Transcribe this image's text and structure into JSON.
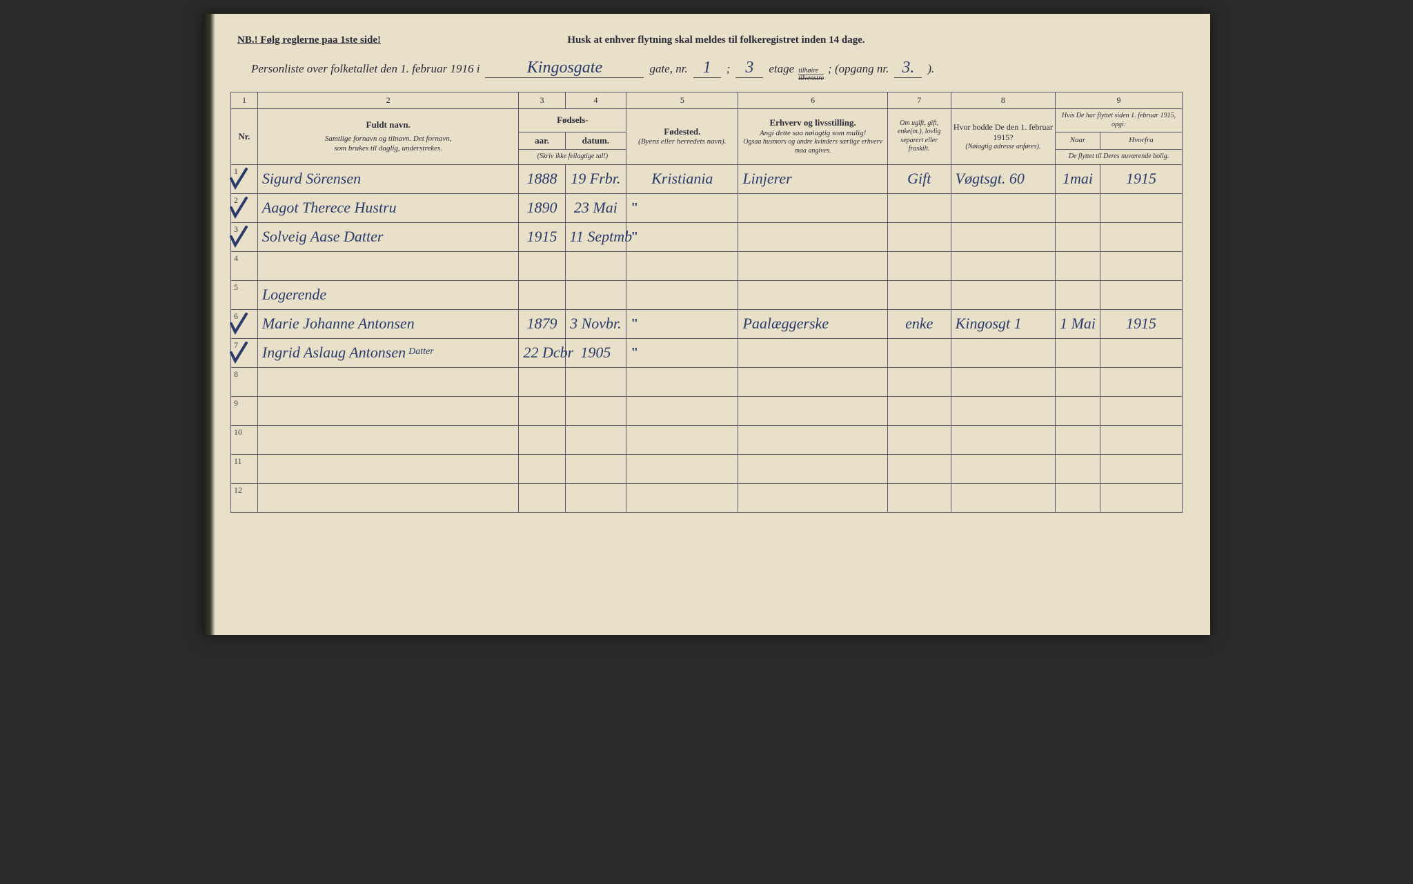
{
  "header": {
    "nb": "NB.! Følg reglerne paa 1ste side!",
    "husk": "Husk at enhver flytning skal meldes til folkeregistret inden 14 dage.",
    "personliste_prefix": "Personliste over folketallet den 1. februar 1916 i",
    "gate_fill": "Kingosgate",
    "gate_label": "gate, nr.",
    "nr_fill": "1",
    "semicolon": ";",
    "etage_fill": "3",
    "etage_label": "etage",
    "tilhoire_top": "tilhøire",
    "tilvenstre_bottom": "tilvenstre",
    "opgang_label": "; (opgang nr.",
    "opgang_fill": "3.",
    "close": ")."
  },
  "columns": {
    "nums": [
      "1",
      "2",
      "3",
      "4",
      "5",
      "6",
      "7",
      "8",
      "9"
    ],
    "nr": "Nr.",
    "fuldt_navn": "Fuldt navn.",
    "navn_sub1": "Samtlige fornavn og tilnavn.  Det fornavn,",
    "navn_sub2": "som brukes til daglig, understrekes.",
    "fodsels": "Fødsels-",
    "aar": "aar.",
    "datum": "datum.",
    "skriv_ikke": "(Skriv ikke feilagtige tal!)",
    "fodested": "Fødested.",
    "fodested_sub": "(Byens eller herredets navn).",
    "erhverv": "Erhverv og livsstilling.",
    "erhverv_sub1": "Angi dette saa nøiagtig som mulig!",
    "erhverv_sub2": "Ogsaa husmors og andre kvinders særlige erhverv maa angives.",
    "ugift": "Om ugift, gift, enke(m.), lovlig separert eller fraskilt.",
    "hvor1915": "Hvor bodde De den 1. februar 1915?",
    "hvor_sub": "(Nøiagtig adresse anføres).",
    "flyttet": "Hvis De har flyttet siden 1. februar 1915, opgi:",
    "naar": "Naar",
    "hvorfra": "Hvorfra",
    "flyttet_sub": "De flyttet til Deres nuværende bolig."
  },
  "rows": [
    {
      "nr": "1",
      "check": true,
      "navn": "Sigurd Sörensen",
      "aar": "1888",
      "datum": "19 Frbr.",
      "fodested": "Kristiania",
      "erhverv": "Linjerer",
      "status": "Gift",
      "adresse": "Vøgtsgt. 60",
      "naar": "1mai",
      "hvorfra": "1915"
    },
    {
      "nr": "2",
      "check": true,
      "navn": "Aagot Therece Hustru",
      "aar": "1890",
      "datum": "23 Mai",
      "fodested": "\"",
      "erhverv": "",
      "status": "",
      "adresse": "",
      "naar": "",
      "hvorfra": ""
    },
    {
      "nr": "3",
      "check": true,
      "navn": "Solveig Aase Datter",
      "aar": "1915",
      "datum": "11 Septmb",
      "fodested": "\"",
      "erhverv": "",
      "status": "",
      "adresse": "",
      "naar": "",
      "hvorfra": ""
    },
    {
      "nr": "4",
      "check": false,
      "navn": "",
      "aar": "",
      "datum": "",
      "fodested": "",
      "erhverv": "",
      "status": "",
      "adresse": "",
      "naar": "",
      "hvorfra": ""
    },
    {
      "nr": "5",
      "check": false,
      "navn": "Logerende",
      "aar": "",
      "datum": "",
      "fodested": "",
      "erhverv": "",
      "status": "",
      "adresse": "",
      "naar": "",
      "hvorfra": ""
    },
    {
      "nr": "6",
      "check": true,
      "navn": "Marie Johanne Antonsen",
      "aar": "1879",
      "datum": "3 Novbr.",
      "fodested": "\"",
      "erhverv": "Paalæggerske",
      "status": "enke",
      "adresse": "Kingosgt 1",
      "naar": "1 Mai",
      "hvorfra": "1915"
    },
    {
      "nr": "7",
      "check": true,
      "navn": "Ingrid Aslaug Antonsen",
      "sup": "Datter",
      "aar": "22 Dcbr",
      "datum": "1905",
      "fodested": "\"",
      "erhverv": "",
      "status": "",
      "adresse": "",
      "naar": "",
      "hvorfra": ""
    },
    {
      "nr": "8",
      "check": false,
      "navn": "",
      "aar": "",
      "datum": "",
      "fodested": "",
      "erhverv": "",
      "status": "",
      "adresse": "",
      "naar": "",
      "hvorfra": ""
    },
    {
      "nr": "9",
      "check": false,
      "navn": "",
      "aar": "",
      "datum": "",
      "fodested": "",
      "erhverv": "",
      "status": "",
      "adresse": "",
      "naar": "",
      "hvorfra": ""
    },
    {
      "nr": "10",
      "check": false,
      "navn": "",
      "aar": "",
      "datum": "",
      "fodested": "",
      "erhverv": "",
      "status": "",
      "adresse": "",
      "naar": "",
      "hvorfra": ""
    },
    {
      "nr": "11",
      "check": false,
      "navn": "",
      "aar": "",
      "datum": "",
      "fodested": "",
      "erhverv": "",
      "status": "",
      "adresse": "",
      "naar": "",
      "hvorfra": ""
    },
    {
      "nr": "12",
      "check": false,
      "navn": "",
      "aar": "",
      "datum": "",
      "fodested": "",
      "erhverv": "",
      "status": "",
      "adresse": "",
      "naar": "",
      "hvorfra": ""
    }
  ],
  "style": {
    "paper_bg": "#e8e0c8",
    "ink_print": "#2a2a3a",
    "ink_handwritten": "#2a3a6a",
    "border": "#5a5a6a",
    "handwritten_font": "Brush Script MT",
    "print_font": "Georgia",
    "handwritten_fontsize": 22,
    "print_fontsize": 12
  }
}
